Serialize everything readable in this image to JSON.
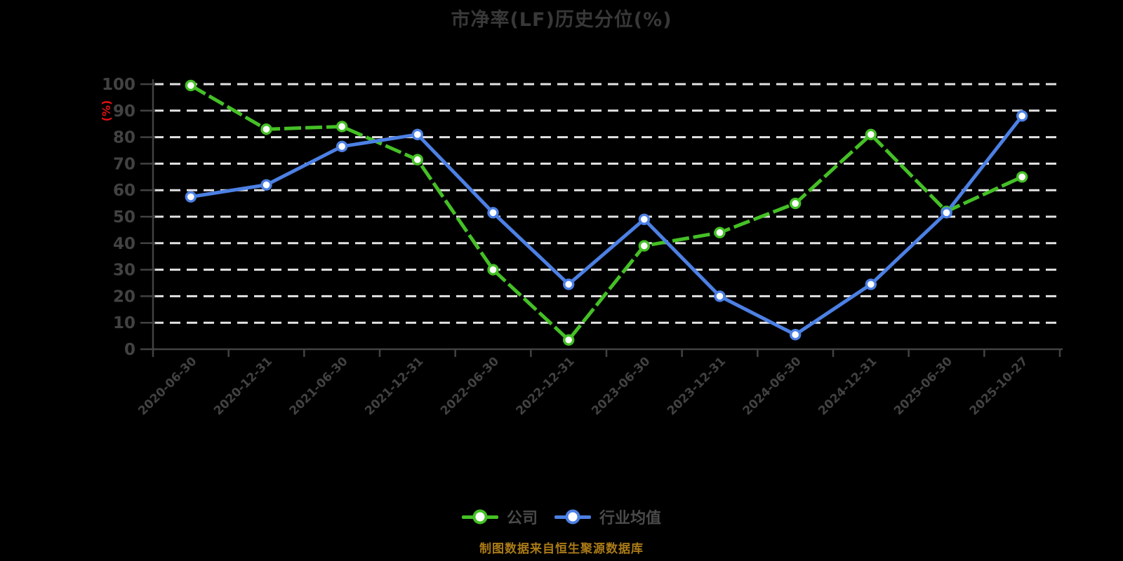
{
  "title": "市净率(LF)历史分位(%)",
  "source_note": "制图数据来自恒生聚源数据库",
  "colors": {
    "background": "#000000",
    "title_text": "#383838",
    "axis_text": "#424242",
    "axis_line": "#424242",
    "grid": "#e3e3e3",
    "ylabel_red": "#e11010",
    "legend_text": "#4a4a4a",
    "source_gold": "#ab7b17",
    "marker_fill": "#ffffff"
  },
  "chart_data": {
    "type": "line",
    "title": "市净率(LF)历史分位(%)",
    "ylabel": "(%)",
    "xlabel": "",
    "ylim": [
      0,
      100
    ],
    "ytick_interval": 10,
    "grid": true,
    "grid_style": "dashed",
    "legend_position": "bottom",
    "categories": [
      "2020-06-30",
      "2020-12-31",
      "2021-06-30",
      "2021-12-31",
      "2022-06-30",
      "2022-12-31",
      "2023-06-30",
      "2023-12-31",
      "2024-06-30",
      "2024-12-31",
      "2025-06-30",
      "2025-10-27"
    ],
    "series": [
      {
        "name": "公司",
        "key": "company",
        "color": "#45c026",
        "line_style": "dashed",
        "marker": "circle-white",
        "values": [
          99.5,
          83,
          84,
          71.5,
          30,
          3.5,
          39,
          44,
          55,
          81,
          52,
          65
        ]
      },
      {
        "name": "行业均值",
        "key": "industry",
        "color": "#4c80e4",
        "line_style": "solid",
        "marker": "circle-white",
        "values": [
          57.5,
          62,
          76.5,
          81,
          51.5,
          24.5,
          49,
          20,
          5.5,
          24.5,
          51.5,
          88
        ]
      }
    ]
  }
}
